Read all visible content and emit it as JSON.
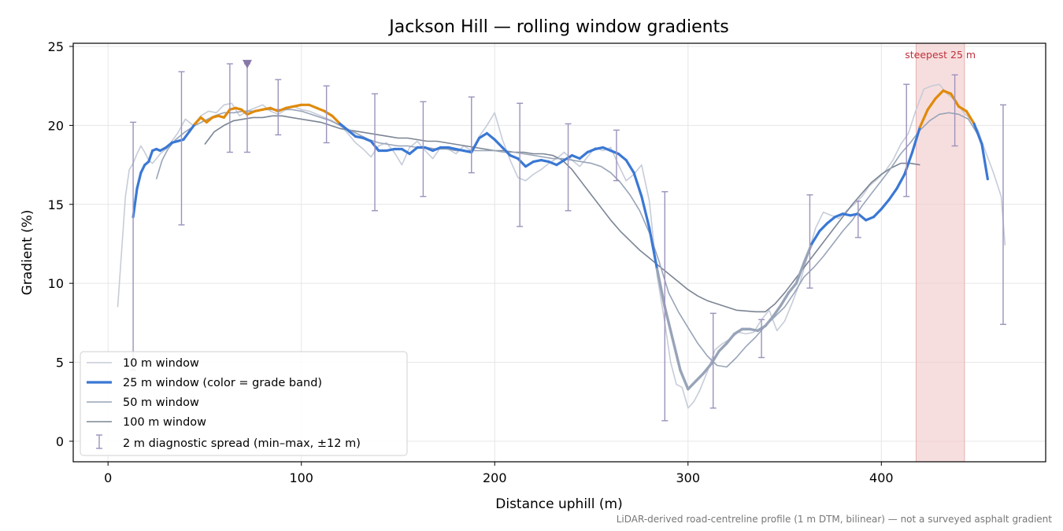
{
  "chart_data": {
    "type": "line",
    "title": "Jackson Hill — rolling window gradients",
    "xlabel": "Distance uphill (m)",
    "ylabel": "Gradient (%)",
    "xlim": [
      -18,
      485
    ],
    "ylim": [
      -1.3,
      25.2
    ],
    "x_ticks": [
      0,
      100,
      200,
      300,
      400
    ],
    "y_ticks": [
      0,
      5,
      10,
      15,
      20,
      25
    ],
    "grid": true,
    "legend_position": "lower-left",
    "footnote": "LiDAR-derived road-centreline profile (1 m DTM, bilinear) — not a surveyed asphalt gradient",
    "annotation": {
      "text": "steepest 25 m",
      "x_range": [
        418,
        443
      ],
      "color": "#c0303b"
    },
    "marker": {
      "x": 72,
      "y": 23.9,
      "color": "#8878a8"
    },
    "colors": {
      "blue": "#3a78d4",
      "orange": "#e08a0b",
      "w10": "#c6ccd8",
      "w50": "#98a4b8",
      "w100": "#7b8594",
      "err": "#9c92bc",
      "shade": "#f2cccc"
    },
    "series": [
      {
        "name": "10 m window",
        "x": [
          5,
          7,
          9,
          11,
          13,
          15,
          17,
          19,
          21,
          23,
          25,
          27,
          30,
          33,
          36,
          40,
          44,
          48,
          52,
          56,
          60,
          64,
          68,
          72,
          76,
          80,
          84,
          88,
          92,
          96,
          100,
          104,
          108,
          112,
          116,
          120,
          124,
          128,
          132,
          136,
          140,
          144,
          148,
          152,
          156,
          160,
          164,
          168,
          172,
          176,
          180,
          184,
          188,
          192,
          196,
          200,
          204,
          208,
          212,
          216,
          220,
          224,
          228,
          232,
          236,
          240,
          244,
          248,
          252,
          256,
          260,
          264,
          268,
          272,
          276,
          280,
          284,
          288,
          291,
          294,
          297,
          300,
          303,
          306,
          310,
          314,
          318,
          322,
          326,
          330,
          334,
          338,
          342,
          346,
          350,
          354,
          358,
          362,
          366,
          370,
          374,
          378,
          382,
          386,
          390,
          394,
          398,
          402,
          406,
          410,
          414,
          418,
          422,
          426,
          430,
          434,
          438,
          442,
          446,
          450,
          454,
          458,
          462,
          464
        ],
        "y": [
          8.5,
          12.0,
          15.5,
          17.2,
          17.6,
          18.2,
          18.7,
          18.3,
          17.8,
          17.6,
          17.9,
          18.2,
          18.5,
          19.0,
          19.5,
          20.4,
          20.0,
          20.6,
          20.9,
          20.8,
          21.3,
          21.4,
          20.6,
          20.9,
          21.1,
          21.3,
          20.9,
          20.7,
          21.0,
          21.2,
          21.0,
          20.9,
          20.7,
          20.5,
          20.3,
          20.0,
          19.5,
          18.9,
          18.5,
          18.0,
          18.7,
          18.9,
          18.3,
          17.5,
          18.6,
          19.0,
          18.4,
          17.9,
          18.6,
          18.5,
          18.2,
          18.7,
          18.4,
          19.3,
          20.0,
          20.8,
          19.1,
          17.8,
          16.7,
          16.5,
          16.9,
          17.2,
          17.6,
          17.9,
          18.3,
          17.8,
          17.4,
          18.0,
          18.6,
          18.4,
          18.6,
          17.5,
          16.5,
          16.9,
          17.5,
          15.2,
          10.5,
          7.5,
          5.0,
          3.6,
          3.4,
          2.1,
          2.5,
          3.2,
          4.4,
          5.8,
          6.2,
          6.5,
          6.9,
          6.8,
          6.9,
          7.7,
          8.3,
          7.0,
          7.6,
          8.8,
          10.1,
          11.8,
          13.5,
          14.5,
          14.3,
          14.1,
          14.6,
          15.0,
          15.5,
          16.2,
          16.6,
          17.1,
          17.8,
          18.8,
          19.5,
          21.0,
          22.3,
          22.5,
          22.6,
          22.0,
          21.6,
          20.9,
          20.4,
          19.7,
          18.3,
          17.0,
          15.5,
          12.4
        ]
      },
      {
        "name": "25 m window (color = grade band)",
        "x": [
          13,
          15,
          17,
          19,
          21,
          23,
          25,
          27,
          30,
          33,
          36,
          39,
          42,
          45,
          48,
          51,
          54,
          57,
          60,
          63,
          66,
          69,
          72,
          76,
          80,
          84,
          88,
          92,
          96,
          100,
          104,
          108,
          112,
          116,
          120,
          124,
          128,
          132,
          136,
          140,
          144,
          148,
          152,
          156,
          160,
          164,
          168,
          172,
          176,
          180,
          184,
          188,
          192,
          196,
          200,
          204,
          208,
          212,
          216,
          220,
          224,
          228,
          232,
          236,
          240,
          244,
          248,
          252,
          256,
          260,
          264,
          268,
          272,
          276,
          280,
          284,
          288,
          292,
          296,
          300,
          304,
          308,
          312,
          316,
          320,
          324,
          328,
          332,
          336,
          340,
          344,
          348,
          352,
          356,
          360,
          364,
          368,
          372,
          376,
          380,
          384,
          388,
          392,
          396,
          400,
          404,
          408,
          412,
          416,
          420,
          424,
          428,
          432,
          436,
          440,
          444,
          448,
          452,
          455
        ],
        "y": [
          14.2,
          16.0,
          17.0,
          17.5,
          17.7,
          18.4,
          18.5,
          18.4,
          18.6,
          18.9,
          19.0,
          19.1,
          19.6,
          20.1,
          20.5,
          20.2,
          20.5,
          20.6,
          20.5,
          21.0,
          21.1,
          21.0,
          20.7,
          20.9,
          21.0,
          21.1,
          20.9,
          21.1,
          21.2,
          21.3,
          21.3,
          21.1,
          20.9,
          20.6,
          20.1,
          19.7,
          19.3,
          19.2,
          19.0,
          18.4,
          18.4,
          18.5,
          18.5,
          18.2,
          18.6,
          18.6,
          18.4,
          18.6,
          18.6,
          18.5,
          18.4,
          18.3,
          19.2,
          19.5,
          19.1,
          18.6,
          18.1,
          17.9,
          17.4,
          17.7,
          17.8,
          17.7,
          17.5,
          17.8,
          18.1,
          17.9,
          18.3,
          18.5,
          18.6,
          18.4,
          18.2,
          17.8,
          17.0,
          15.5,
          13.5,
          10.9,
          8.5,
          6.5,
          4.5,
          3.3,
          3.8,
          4.3,
          4.9,
          5.7,
          6.2,
          6.8,
          7.1,
          7.1,
          7.0,
          7.3,
          7.9,
          8.6,
          9.4,
          10.0,
          11.3,
          12.5,
          13.3,
          13.8,
          14.2,
          14.4,
          14.3,
          14.4,
          14.0,
          14.2,
          14.7,
          15.3,
          16.0,
          16.9,
          18.3,
          19.9,
          21.0,
          21.7,
          22.2,
          22.0,
          21.2,
          20.9,
          20.1,
          18.8,
          16.6
        ]
      },
      {
        "name": "50 m window",
        "x": [
          25,
          28,
          31,
          35,
          40,
          45,
          50,
          55,
          60,
          65,
          70,
          75,
          80,
          85,
          90,
          95,
          100,
          105,
          110,
          115,
          120,
          125,
          130,
          135,
          140,
          145,
          150,
          155,
          160,
          165,
          170,
          175,
          180,
          185,
          190,
          195,
          200,
          205,
          210,
          215,
          220,
          225,
          230,
          235,
          240,
          245,
          250,
          255,
          260,
          265,
          270,
          275,
          280,
          285,
          290,
          295,
          300,
          305,
          310,
          315,
          320,
          325,
          330,
          335,
          340,
          345,
          350,
          355,
          360,
          365,
          370,
          375,
          380,
          385,
          390,
          395,
          400,
          405,
          410,
          415,
          420,
          425,
          430,
          435,
          440,
          445,
          450
        ],
        "y": [
          16.6,
          17.8,
          18.5,
          19.1,
          19.6,
          20.0,
          20.3,
          20.6,
          20.8,
          20.8,
          20.9,
          20.9,
          21.0,
          21.0,
          21.0,
          21.0,
          20.9,
          20.7,
          20.5,
          20.3,
          20.0,
          19.7,
          19.4,
          19.1,
          18.9,
          18.8,
          18.7,
          18.7,
          18.6,
          18.6,
          18.5,
          18.5,
          18.4,
          18.4,
          18.4,
          18.4,
          18.4,
          18.3,
          18.3,
          18.2,
          18.1,
          18.0,
          17.9,
          17.9,
          17.8,
          17.7,
          17.6,
          17.4,
          17.0,
          16.4,
          15.6,
          14.6,
          13.2,
          11.4,
          9.4,
          8.2,
          7.2,
          6.2,
          5.4,
          4.8,
          4.7,
          5.3,
          6.0,
          6.6,
          7.3,
          7.9,
          8.5,
          9.4,
          10.4,
          11.0,
          11.7,
          12.5,
          13.3,
          14.0,
          14.9,
          15.7,
          16.5,
          17.3,
          18.2,
          18.9,
          19.7,
          20.3,
          20.7,
          20.8,
          20.7,
          20.4,
          19.4
        ]
      },
      {
        "name": "100 m window",
        "x": [
          50,
          55,
          60,
          65,
          70,
          75,
          80,
          85,
          90,
          95,
          100,
          105,
          110,
          115,
          120,
          125,
          130,
          135,
          140,
          145,
          150,
          155,
          160,
          165,
          170,
          175,
          180,
          185,
          190,
          195,
          200,
          205,
          210,
          215,
          220,
          225,
          230,
          235,
          240,
          245,
          250,
          255,
          260,
          265,
          270,
          275,
          280,
          285,
          290,
          295,
          300,
          305,
          310,
          315,
          320,
          325,
          330,
          335,
          340,
          345,
          350,
          355,
          360,
          365,
          370,
          375,
          380,
          385,
          390,
          395,
          400,
          405,
          410,
          415,
          420
        ],
        "y": [
          18.8,
          19.6,
          20.0,
          20.3,
          20.4,
          20.5,
          20.5,
          20.6,
          20.6,
          20.5,
          20.4,
          20.3,
          20.2,
          20.0,
          19.8,
          19.7,
          19.6,
          19.5,
          19.4,
          19.3,
          19.2,
          19.2,
          19.1,
          19.0,
          19.0,
          18.9,
          18.8,
          18.7,
          18.6,
          18.5,
          18.4,
          18.4,
          18.3,
          18.3,
          18.2,
          18.2,
          18.1,
          17.8,
          17.2,
          16.4,
          15.6,
          14.8,
          14.0,
          13.3,
          12.7,
          12.1,
          11.6,
          11.1,
          10.6,
          10.1,
          9.6,
          9.2,
          8.9,
          8.7,
          8.5,
          8.3,
          8.25,
          8.2,
          8.2,
          8.7,
          9.4,
          10.2,
          11.0,
          11.8,
          12.6,
          13.4,
          14.2,
          15.0,
          15.7,
          16.4,
          16.9,
          17.3,
          17.6,
          17.6,
          17.5
        ]
      }
    ],
    "errorbars": {
      "name": "2 m diagnostic spread (min–max, ±12 m)",
      "x": [
        13,
        38,
        63,
        72,
        88,
        113,
        138,
        163,
        188,
        213,
        238,
        263,
        288,
        313,
        338,
        363,
        388,
        413,
        438,
        463
      ],
      "ymin": [
        4.5,
        13.7,
        18.3,
        18.3,
        19.4,
        18.9,
        14.6,
        15.5,
        17.0,
        13.6,
        14.6,
        16.5,
        1.3,
        2.1,
        5.3,
        9.7,
        12.9,
        15.5,
        18.7,
        7.4
      ],
      "ymax": [
        20.2,
        23.4,
        23.9,
        23.9,
        22.9,
        22.5,
        22.0,
        21.5,
        21.8,
        21.4,
        20.1,
        19.7,
        15.8,
        8.1,
        7.7,
        15.6,
        15.2,
        22.6,
        23.2,
        21.3
      ]
    }
  }
}
